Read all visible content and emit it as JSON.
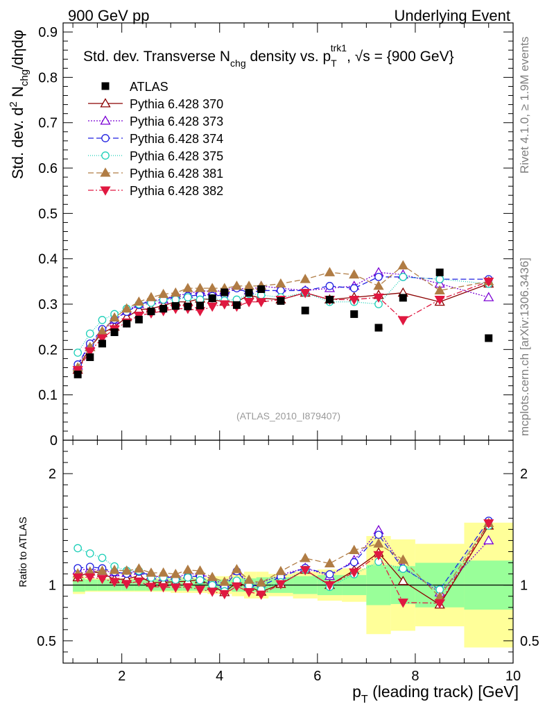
{
  "header": {
    "left": "900 GeV pp",
    "right": "Underlying Event"
  },
  "side": {
    "rivet": "Rivet 4.1.0, ≥ 1.9M events",
    "mcplots": "mcplots.cern.ch [arXiv:1306.3436]"
  },
  "chart_data": {
    "type": "scatter",
    "title": "Std. dev. Transverse N_chg density vs. p_T^trk1, √s = {900 GeV}",
    "title_parts": {
      "a": "Std. dev. Transverse N",
      "b": "chg",
      "c": " density vs. p",
      "d": "T",
      "e": "trk1",
      "f": ", √s = {900 GeV}"
    },
    "ylabel": "Std. dev. d² N_chg/dηdφ",
    "ylabel_parts": {
      "a": "Std. dev. d",
      "b": "2",
      "c": " N",
      "d": "chg",
      "e": "/dηdφ"
    },
    "xlabel": "p_T (leading track) [GeV]",
    "xlabel_parts": {
      "a": "p",
      "b": "T",
      "c": " (leading track) [GeV]"
    },
    "ratio_ylabel": "Ratio to ATLAS",
    "analysis_tag": "(ATLAS_2010_I879407)",
    "xlim": [
      0.8,
      10.0
    ],
    "ylim": [
      0,
      0.92
    ],
    "ratio_ylim": [
      0.3,
      2.3
    ],
    "xticks": [
      2,
      4,
      6,
      8,
      10
    ],
    "yticks": [
      0,
      0.1,
      0.2,
      0.3,
      0.4,
      0.5,
      0.6,
      0.7,
      0.8,
      0.9
    ],
    "ytick_labels": [
      "0",
      "0.1",
      "0.2",
      "0.3",
      "0.4",
      "0.5",
      "0.6",
      "0.7",
      "0.8",
      "0.9"
    ],
    "ratio_yticks": [
      0.5,
      1,
      2
    ],
    "ratio_ytick_labels": [
      "0.5",
      "1",
      "2"
    ],
    "xtick_labels": [
      "2",
      "4",
      "6",
      "8",
      "10"
    ],
    "x": [
      1.1,
      1.35,
      1.6,
      1.85,
      2.1,
      2.35,
      2.6,
      2.85,
      3.1,
      3.35,
      3.6,
      3.85,
      4.1,
      4.35,
      4.6,
      4.85,
      5.25,
      5.75,
      6.25,
      6.75,
      7.25,
      7.75,
      8.5,
      9.5
    ],
    "bin_edges": [
      1.0,
      1.25,
      1.5,
      1.75,
      2.0,
      2.25,
      2.5,
      2.75,
      3.0,
      3.25,
      3.5,
      3.75,
      4.0,
      4.25,
      4.5,
      4.75,
      5.0,
      5.5,
      6.0,
      6.5,
      7.0,
      7.5,
      8.0,
      9.0,
      10.0
    ],
    "data": {
      "name": "ATLAS",
      "values": [
        0.145,
        0.183,
        0.213,
        0.238,
        0.257,
        0.266,
        0.284,
        0.29,
        0.296,
        0.295,
        0.297,
        0.313,
        0.326,
        0.298,
        0.325,
        0.333,
        0.307,
        0.286,
        0.31,
        0.278,
        0.248,
        0.314,
        0.37,
        0.225
      ],
      "band_inner": [
        0.06,
        0.05,
        0.05,
        0.05,
        0.05,
        0.05,
        0.05,
        0.05,
        0.05,
        0.05,
        0.05,
        0.05,
        0.05,
        0.06,
        0.06,
        0.07,
        0.07,
        0.08,
        0.09,
        0.09,
        0.18,
        0.17,
        0.2,
        0.22
      ],
      "band_outer": [
        0.08,
        0.06,
        0.06,
        0.06,
        0.06,
        0.06,
        0.06,
        0.06,
        0.07,
        0.07,
        0.07,
        0.08,
        0.08,
        0.1,
        0.12,
        0.12,
        0.1,
        0.12,
        0.14,
        0.15,
        0.44,
        0.41,
        0.37,
        0.56
      ]
    },
    "series": [
      {
        "name": "Pythia 6.428 370",
        "color": "#8b0000",
        "dash": "",
        "marker": "tri-up-open",
        "values": [
          0.155,
          0.205,
          0.236,
          0.25,
          0.271,
          0.288,
          0.29,
          0.297,
          0.305,
          0.305,
          0.312,
          0.31,
          0.305,
          0.305,
          0.32,
          0.313,
          0.31,
          0.325,
          0.31,
          0.315,
          0.32,
          0.325,
          0.305,
          0.345
        ]
      },
      {
        "name": "Pythia 6.428 373",
        "color": "#7b00d4",
        "dash": "2,2",
        "marker": "tri-up-open",
        "values": [
          0.164,
          0.21,
          0.24,
          0.265,
          0.285,
          0.3,
          0.308,
          0.31,
          0.32,
          0.322,
          0.33,
          0.328,
          0.33,
          0.338,
          0.33,
          0.34,
          0.335,
          0.33,
          0.335,
          0.34,
          0.37,
          0.365,
          0.345,
          0.315
        ]
      },
      {
        "name": "Pythia 6.428 374",
        "color": "#1f1fe0",
        "dash": "8,4",
        "marker": "circle-open",
        "values": [
          0.167,
          0.213,
          0.245,
          0.266,
          0.283,
          0.298,
          0.308,
          0.31,
          0.317,
          0.318,
          0.32,
          0.318,
          0.32,
          0.335,
          0.325,
          0.33,
          0.33,
          0.33,
          0.34,
          0.335,
          0.36,
          0.36,
          0.355,
          0.355
        ]
      },
      {
        "name": "Pythia 6.428 375",
        "color": "#1ccfb8",
        "dash": "1,2",
        "marker": "circle-open",
        "values": [
          0.193,
          0.235,
          0.265,
          0.278,
          0.29,
          0.3,
          0.303,
          0.31,
          0.31,
          0.315,
          0.31,
          0.313,
          0.308,
          0.31,
          0.323,
          0.32,
          0.315,
          0.325,
          0.305,
          0.305,
          0.3,
          0.36,
          0.355,
          0.345
        ]
      },
      {
        "name": "Pythia 6.428 381",
        "color": "#b07c44",
        "dash": "8,4",
        "marker": "tri-up-filled",
        "values": [
          0.16,
          0.205,
          0.24,
          0.27,
          0.29,
          0.305,
          0.315,
          0.322,
          0.325,
          0.335,
          0.335,
          0.335,
          0.335,
          0.34,
          0.34,
          0.34,
          0.345,
          0.355,
          0.37,
          0.365,
          0.34,
          0.385,
          0.33,
          0.35
        ]
      },
      {
        "name": "Pythia 6.428 382",
        "color": "#e01840",
        "dash": "8,3,2,3",
        "marker": "tri-down-filled",
        "values": [
          0.155,
          0.196,
          0.225,
          0.245,
          0.26,
          0.275,
          0.28,
          0.285,
          0.29,
          0.29,
          0.285,
          0.295,
          0.3,
          0.295,
          0.305,
          0.305,
          0.31,
          0.325,
          0.31,
          0.31,
          0.315,
          0.265,
          0.31,
          0.35
        ]
      }
    ]
  }
}
